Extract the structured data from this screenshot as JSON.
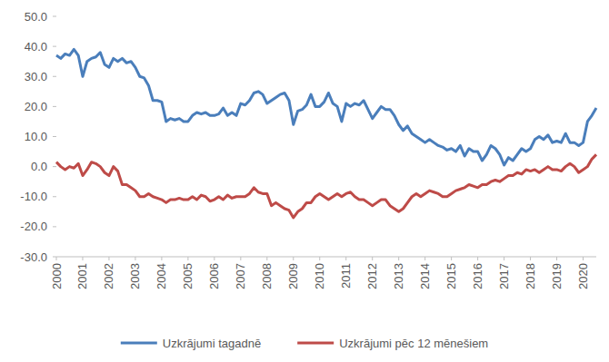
{
  "chart_data": {
    "type": "line",
    "categories": [
      "2000",
      null,
      null,
      null,
      null,
      null,
      "2001",
      null,
      null,
      null,
      null,
      null,
      "2002",
      null,
      null,
      null,
      null,
      null,
      "2003",
      null,
      null,
      null,
      null,
      null,
      "2004",
      null,
      null,
      null,
      null,
      null,
      "2005",
      null,
      null,
      null,
      null,
      null,
      "2006",
      null,
      null,
      null,
      null,
      null,
      "2007",
      null,
      null,
      null,
      null,
      null,
      "2008",
      null,
      null,
      null,
      null,
      null,
      "2009",
      null,
      null,
      null,
      null,
      null,
      "2010",
      null,
      null,
      null,
      null,
      null,
      "2011",
      null,
      null,
      null,
      null,
      null,
      "2012",
      null,
      null,
      null,
      null,
      null,
      "2013",
      null,
      null,
      null,
      null,
      null,
      "2014",
      null,
      null,
      null,
      null,
      null,
      "2015",
      null,
      null,
      null,
      null,
      null,
      "2016",
      null,
      null,
      null,
      null,
      null,
      "2017",
      null,
      null,
      null,
      null,
      null,
      "2018",
      null,
      null,
      null,
      null,
      null,
      "2019",
      null,
      null,
      null,
      null,
      null,
      "2020",
      null,
      null,
      null
    ],
    "series": [
      {
        "name": "Uzkrājumi tagadnē",
        "color": "#4a7ebb",
        "values": [
          37,
          36,
          37.5,
          37,
          39,
          37,
          30,
          35,
          36,
          36.5,
          38,
          34,
          33,
          36,
          35,
          36,
          34.5,
          35,
          33,
          30,
          29.5,
          27,
          22,
          22,
          21.5,
          15,
          16,
          15.5,
          16,
          15,
          15,
          17,
          18,
          17.5,
          18,
          17,
          17,
          17.5,
          19.5,
          17,
          18,
          17,
          21,
          20.5,
          22,
          24.5,
          25,
          24,
          21,
          22,
          23,
          24,
          24.5,
          22,
          14,
          18.5,
          19,
          20.5,
          24,
          20,
          20,
          21.5,
          24.5,
          21,
          20,
          15,
          21,
          20,
          21,
          20.5,
          22,
          19,
          16,
          18,
          20,
          19,
          19,
          17,
          14,
          12,
          13.5,
          11,
          10,
          9,
          8,
          9,
          8,
          7,
          6.5,
          5.5,
          6,
          5,
          7,
          3.5,
          6,
          5,
          5,
          2,
          4,
          7,
          6,
          4,
          0.5,
          3,
          2,
          4,
          6,
          5,
          6,
          9,
          10,
          9,
          10.5,
          8,
          8.5,
          8,
          11,
          8,
          8,
          7,
          8,
          15,
          17,
          19.5
        ]
      },
      {
        "name": "Uzkrājumi pēc 12 mēnešiem",
        "color": "#be4b48",
        "values": [
          1.5,
          0,
          -1,
          0,
          -0.5,
          1,
          -3,
          -1,
          1.5,
          1,
          0,
          -2,
          -3,
          0,
          -1.5,
          -6,
          -6,
          -7,
          -8,
          -10,
          -10,
          -9,
          -10,
          -10.5,
          -11,
          -12,
          -11,
          -11,
          -10.5,
          -11,
          -11,
          -10,
          -11,
          -9.5,
          -10,
          -11.5,
          -11,
          -10,
          -11,
          -9.5,
          -10.5,
          -10,
          -10,
          -10,
          -9,
          -7,
          -8.5,
          -9,
          -9,
          -13,
          -12,
          -13,
          -14,
          -14.5,
          -17,
          -15,
          -14,
          -12,
          -12,
          -10,
          -9,
          -10,
          -11,
          -10,
          -9,
          -10,
          -9,
          -8.5,
          -10,
          -11,
          -11,
          -12,
          -13,
          -12,
          -11,
          -11,
          -13,
          -14,
          -15,
          -14,
          -12,
          -10,
          -9,
          -10,
          -9,
          -8,
          -8.5,
          -9,
          -10,
          -10,
          -9,
          -8,
          -7.5,
          -7,
          -6,
          -6.5,
          -7,
          -6,
          -6,
          -5,
          -4.5,
          -5,
          -4,
          -3,
          -3,
          -2,
          -2.5,
          -1,
          -1.5,
          -1,
          -2,
          -1,
          0,
          -1,
          -1,
          -1.5,
          0,
          1,
          0,
          -2,
          -1,
          0,
          2.5,
          4
        ]
      }
    ],
    "ylim": [
      -30,
      50
    ],
    "yticks": [
      {
        "value": -30,
        "label": "-30.0"
      },
      {
        "value": -20,
        "label": "-20.0"
      },
      {
        "value": -10,
        "label": "-10.0"
      },
      {
        "value": 0,
        "label": "0.0"
      },
      {
        "value": 10,
        "label": "10.0"
      },
      {
        "value": 20,
        "label": "20.0"
      },
      {
        "value": 30,
        "label": "30.0"
      },
      {
        "value": 40,
        "label": "40.0"
      },
      {
        "value": 50,
        "label": "50.0"
      }
    ],
    "grid": false,
    "legend": "bottom"
  }
}
